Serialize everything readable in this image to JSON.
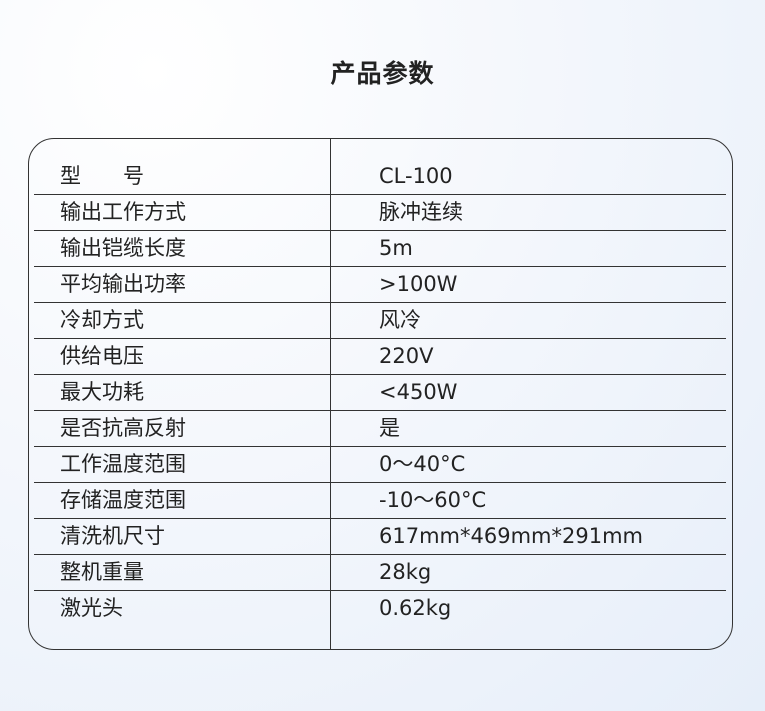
{
  "title": "产品参数",
  "rows": [
    {
      "label": "型　　号",
      "value": "CL-100"
    },
    {
      "label": "输出工作方式",
      "value": "脉冲连续"
    },
    {
      "label": "输出铠缆长度",
      "value": "5m"
    },
    {
      "label": "平均输出功率",
      "value": ">100W"
    },
    {
      "label": "冷却方式",
      "value": "风冷"
    },
    {
      "label": "供给电压",
      "value": "220V"
    },
    {
      "label": "最大功耗",
      "value": "<450W"
    },
    {
      "label": "是否抗高反射",
      "value": "是"
    },
    {
      "label": "工作温度范围",
      "value": "0～40°C"
    },
    {
      "label": "存储温度范围",
      "value": "-10～60°C"
    },
    {
      "label": "清洗机尺寸",
      "value": "617mm*469mm*291mm"
    },
    {
      "label": "整机重量",
      "value": "28kg"
    },
    {
      "label": "激光头",
      "value": "0.62kg"
    }
  ]
}
